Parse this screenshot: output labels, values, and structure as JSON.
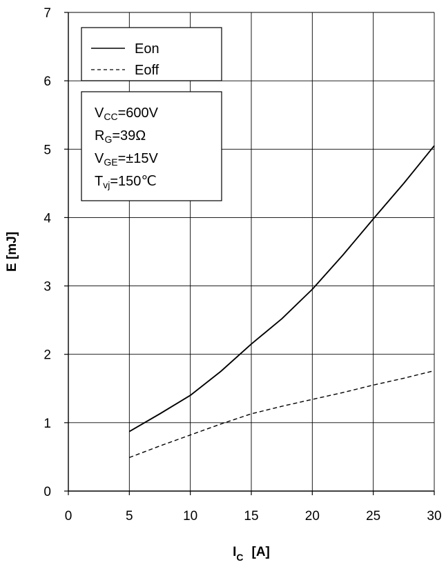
{
  "chart_data": {
    "type": "line",
    "xlabel": {
      "main": "I",
      "sub": "C",
      "unit": "[A]"
    },
    "ylabel": "E  [mJ]",
    "xlim": [
      0,
      30
    ],
    "ylim": [
      0,
      7
    ],
    "xticks": [
      "0",
      "5",
      "10",
      "15",
      "20",
      "25",
      "30"
    ],
    "yticks": [
      "0",
      "1",
      "2",
      "3",
      "4",
      "5",
      "6",
      "7"
    ],
    "grid": true,
    "legend_position": "top-left",
    "series": [
      {
        "name": "Eon",
        "style": "solid",
        "color": "#000000",
        "x": [
          5,
          7.5,
          10,
          12.5,
          15,
          17.5,
          20,
          22.5,
          25,
          27.5,
          30
        ],
        "y": [
          0.87,
          1.13,
          1.4,
          1.75,
          2.15,
          2.52,
          2.95,
          3.45,
          3.98,
          4.5,
          5.05
        ]
      },
      {
        "name": "Eoff",
        "style": "dashed",
        "color": "#000000",
        "x": [
          5,
          7.5,
          10,
          12.5,
          15,
          17.5,
          20,
          22.5,
          25,
          27.5,
          30
        ],
        "y": [
          0.49,
          0.66,
          0.82,
          0.98,
          1.13,
          1.24,
          1.34,
          1.44,
          1.55,
          1.65,
          1.76
        ]
      }
    ],
    "conditions": [
      {
        "main": "V",
        "sub": "CC",
        "rest": "=600V"
      },
      {
        "main": "R",
        "sub": "G",
        "rest": "=39Ω"
      },
      {
        "main": "V",
        "sub": "GE",
        "rest": "=±15V"
      },
      {
        "main": "T",
        "sub": "vj",
        "rest": "=150℃"
      }
    ]
  }
}
